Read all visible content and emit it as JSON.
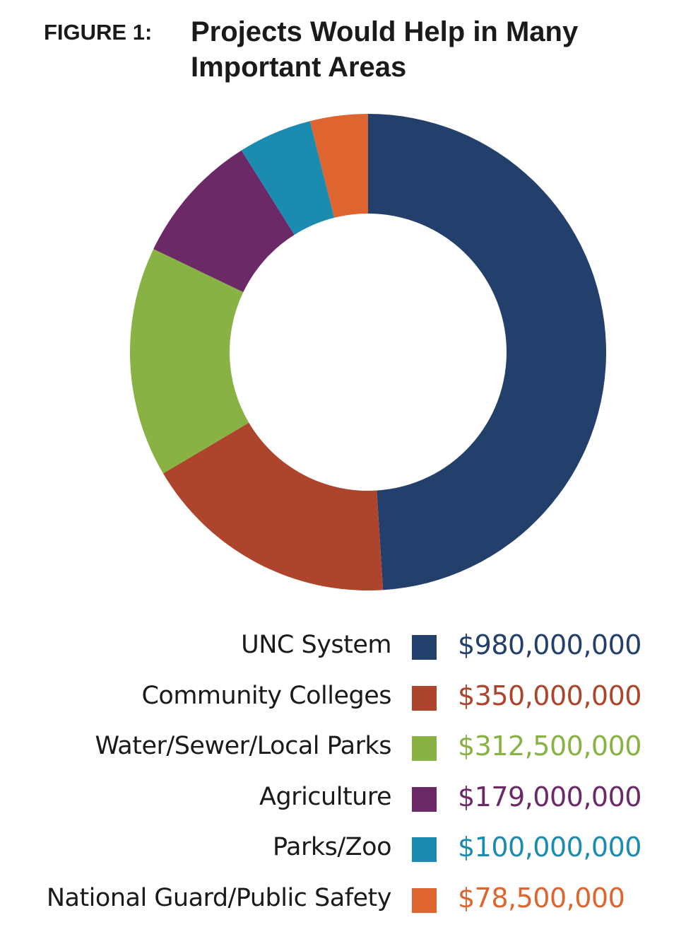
{
  "figure_label": "FIGURE 1:",
  "title": "Projects Would Help in Many Important Areas",
  "chart_data": {
    "type": "pie",
    "title": "Projects Would Help in Many Important Areas",
    "donut": true,
    "categories": [
      "UNC System",
      "Community Colleges",
      "Water/Sewer/Local Parks",
      "Agriculture",
      "Parks/Zoo",
      "National Guard/Public Safety"
    ],
    "values": [
      980000000,
      350000000,
      312500000,
      179000000,
      100000000,
      78500000
    ],
    "value_labels": [
      "$980,000,000",
      "$350,000,000",
      "$312,500,000",
      "$179,000,000",
      "$100,000,000",
      "$78,500,000"
    ],
    "colors": [
      "#233f6b",
      "#ad442c",
      "#88b243",
      "#6b2a67",
      "#1c8bb0",
      "#df6530"
    ],
    "legend_position": "bottom"
  }
}
